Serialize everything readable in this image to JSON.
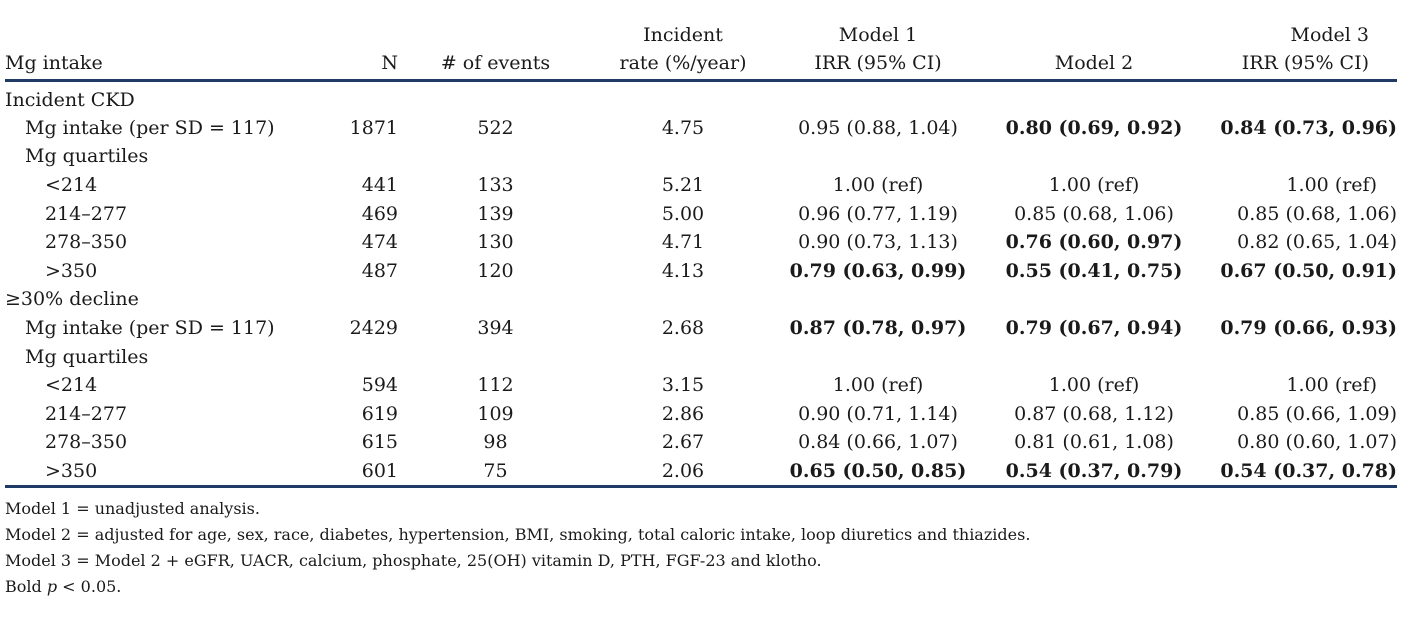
{
  "header": {
    "mg_intake": "Mg intake",
    "n": "N",
    "events": "# of events",
    "rate_l1": "Incident",
    "rate_l2": "rate (%/year)",
    "m1_l1": "Model 1",
    "m1_l2": "IRR (95% CI)",
    "m2": "Model 2",
    "m3_l1": "Model 3",
    "m3_l2": "IRR (95% CI)"
  },
  "rows": [
    {
      "label": "Incident CKD"
    },
    {
      "label": "Mg intake (per SD = 117)",
      "n": "1871",
      "events": "522",
      "rate": "4.75",
      "m1": "0.95 (0.88, 1.04)",
      "m2": "0.80 (0.69, 0.92)",
      "m3": "0.84 (0.73, 0.96)"
    },
    {
      "label": "Mg quartiles"
    },
    {
      "label": "<214",
      "n": "441",
      "events": "133",
      "rate": "5.21",
      "m1": "1.00 (ref)",
      "m2": "1.00 (ref)",
      "m3": "1.00 (ref)"
    },
    {
      "label": "214–277",
      "n": "469",
      "events": "139",
      "rate": "5.00",
      "m1": "0.96 (0.77, 1.19)",
      "m2": "0.85 (0.68, 1.06)",
      "m3": "0.85 (0.68, 1.06)"
    },
    {
      "label": "278–350",
      "n": "474",
      "events": "130",
      "rate": "4.71",
      "m1": "0.90 (0.73, 1.13)",
      "m2": "0.76 (0.60, 0.97)",
      "m3": "0.82 (0.65, 1.04)"
    },
    {
      "label": ">350",
      "n": "487",
      "events": "120",
      "rate": "4.13",
      "m1": "0.79 (0.63, 0.99)",
      "m2": "0.55 (0.41, 0.75)",
      "m3": "0.67 (0.50, 0.91)"
    },
    {
      "label": "≥30% decline"
    },
    {
      "label": "Mg intake (per SD = 117)",
      "n": "2429",
      "events": "394",
      "rate": "2.68",
      "m1": "0.87 (0.78, 0.97)",
      "m2": "0.79 (0.67, 0.94)",
      "m3": "0.79 (0.66, 0.93)"
    },
    {
      "label": "Mg quartiles"
    },
    {
      "label": "<214",
      "n": "594",
      "events": "112",
      "rate": "3.15",
      "m1": "1.00 (ref)",
      "m2": "1.00 (ref)",
      "m3": "1.00 (ref)"
    },
    {
      "label": "214–277",
      "n": "619",
      "events": "109",
      "rate": "2.86",
      "m1": "0.90 (0.71, 1.14)",
      "m2": "0.87 (0.68, 1.12)",
      "m3": "0.85 (0.66, 1.09)"
    },
    {
      "label": "278–350",
      "n": "615",
      "events": "98",
      "rate": "2.67",
      "m1": "0.84 (0.66, 1.07)",
      "m2": "0.81 (0.61, 1.08)",
      "m3": "0.80 (0.60, 1.07)"
    },
    {
      "label": ">350",
      "n": "601",
      "events": "75",
      "rate": "2.06",
      "m1": "0.65 (0.50, 0.85)",
      "m2": "0.54 (0.37, 0.79)",
      "m3": "0.54 (0.37, 0.78)"
    }
  ],
  "notes": {
    "model1": "Model 1 = unadjusted analysis.",
    "model2": "Model 2 = adjusted for age, sex, race, diabetes, hypertension, BMI, smoking, total caloric intake, loop diuretics and thiazides.",
    "model3": "Model 3 = Model 2 + eGFR, UACR, calcium, phosphate, 25(OH) vitamin D, PTH, FGF-23 and klotho.",
    "bold_prefix": "Bold ",
    "bold_p": "p",
    "bold_suffix": " < 0.05."
  }
}
